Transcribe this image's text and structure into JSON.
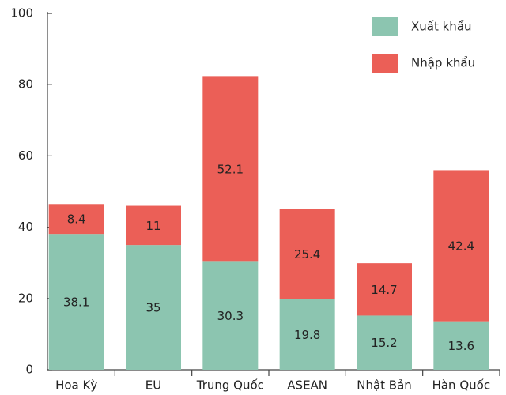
{
  "chart_data": {
    "type": "stacked_bar",
    "categories": [
      "Hoa Kỳ",
      "EU",
      "Trung Quốc",
      "ASEAN",
      "Nhật Bản",
      "Hàn Quốc"
    ],
    "series": [
      {
        "name": "Xuất khẩu",
        "color": "#8cc5b0",
        "values": [
          38.1,
          35,
          30.3,
          19.8,
          15.2,
          13.6
        ]
      },
      {
        "name": "Nhập khẩu",
        "color": "#eb5f57",
        "values": [
          8.4,
          11,
          52.1,
          25.4,
          14.7,
          42.4
        ]
      }
    ],
    "ylim": [
      0,
      100
    ],
    "yticks": [
      0,
      20,
      40,
      60,
      80,
      100
    ],
    "grid": false,
    "legend": "top-right"
  }
}
